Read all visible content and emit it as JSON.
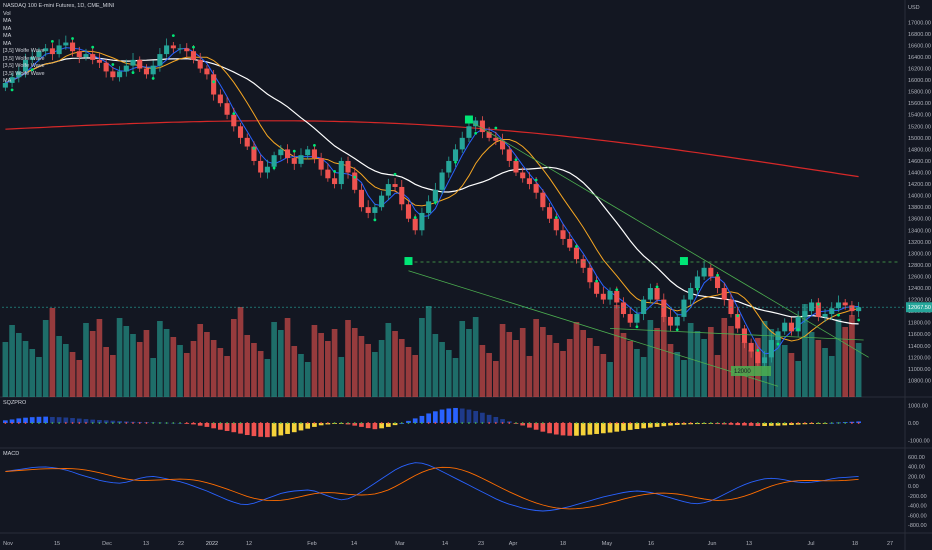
{
  "chart_data": {
    "type": "candlestick",
    "title": "NASDAQ 100 E-mini Futures, 1D, CME_MINI",
    "legend_items": [
      "Vol",
      "MA",
      "MA",
      "MA",
      "MA",
      "[3,5] Wolfe Wave",
      "[3,5] Wolfe Wave",
      "[3,5] Wolfe Wave",
      "[3,5] Wolfe Wave",
      "MA"
    ],
    "x_tick_labels": [
      "Nov",
      "15",
      "Dec",
      "13",
      "22",
      "2022",
      "12",
      "Feb",
      "14",
      "Mar",
      "14",
      "23",
      "Apr",
      "18",
      "May",
      "16",
      "Jun",
      "13",
      "Jul",
      "18",
      "27"
    ],
    "y_tick_labels": [
      "USD",
      "17200.00",
      "17000.00",
      "16800.00",
      "16600.00",
      "16400.00",
      "16200.00",
      "16000.00",
      "15800.00",
      "15600.00",
      "15400.00",
      "15200.00",
      "15000.00",
      "14800.00",
      "14600.00",
      "14400.00",
      "14200.00",
      "14000.00",
      "13800.00",
      "13600.00",
      "13400.00",
      "13200.00",
      "13000.00",
      "12800.00",
      "12600.00",
      "12400.00",
      "12200.00",
      "12000.00",
      "11800.00",
      "11600.00",
      "11400.00",
      "11200.00",
      "11000.00",
      "10800.00"
    ],
    "ylim": [
      10600,
      17300
    ],
    "last_price_label": "12067.50",
    "last_price": 12067.5,
    "series": [
      {
        "name": "Close",
        "values": [
          15950,
          16050,
          16150,
          16350,
          16400,
          16500,
          16550,
          16450,
          16600,
          16650,
          16500,
          16400,
          16450,
          16350,
          16300,
          16150,
          16050,
          16150,
          16250,
          16350,
          16200,
          16100,
          16250,
          16450,
          16600,
          16550,
          16550,
          16500,
          16350,
          16200,
          16100,
          15750,
          15600,
          15400,
          15200,
          15000,
          14850,
          14600,
          14400,
          14500,
          14700,
          14800,
          14650,
          14550,
          14700,
          14800,
          14650,
          14450,
          14300,
          14200,
          14600,
          14400,
          14100,
          13800,
          13700,
          13800,
          14000,
          14200,
          14150,
          13850,
          13600,
          13400,
          13700,
          13900,
          14100,
          14400,
          14600,
          14800,
          15000,
          15200,
          15300,
          15100,
          15000,
          14950,
          14800,
          14600,
          14400,
          14300,
          14200,
          14050,
          13800,
          13600,
          13400,
          13250,
          13100,
          12900,
          12750,
          12500,
          12300,
          12200,
          12350,
          12150,
          11950,
          11800,
          11950,
          12200,
          12400,
          12200,
          11900,
          11750,
          11900,
          12200,
          12400,
          12600,
          12750,
          12600,
          12400,
          12200,
          11950,
          11700,
          11450,
          11300,
          11100,
          11200,
          11500,
          11650,
          11800,
          11650,
          11900,
          12000,
          12150,
          11900,
          11950,
          12050,
          12150,
          12100,
          12000,
          12067.5
        ]
      },
      {
        "name": "SQZPRO",
        "values": [
          150,
          200,
          260,
          300,
          330,
          350,
          360,
          340,
          330,
          310,
          280,
          250,
          220,
          190,
          170,
          150,
          130,
          110,
          90,
          70,
          60,
          50,
          40,
          30,
          20,
          10,
          0,
          -30,
          -80,
          -150,
          -220,
          -300,
          -380,
          -450,
          -520,
          -600,
          -680,
          -740,
          -780,
          -800,
          -760,
          -700,
          -620,
          -520,
          -420,
          -320,
          -220,
          -130,
          -80,
          -50,
          -30,
          -80,
          -150,
          -220,
          -290,
          -350,
          -300,
          -220,
          -120,
          0,
          120,
          260,
          400,
          540,
          660,
          760,
          820,
          850,
          820,
          760,
          680,
          580,
          460,
          340,
          220,
          100,
          -20,
          -140,
          -260,
          -380,
          -490,
          -580,
          -650,
          -700,
          -720,
          -720,
          -700,
          -660,
          -620,
          -580,
          -540,
          -490,
          -440,
          -390,
          -340,
          -300,
          -260,
          -220,
          -180,
          -140,
          -110,
          -90,
          -70,
          -60,
          -50,
          -40,
          -60,
          -80,
          -100,
          -120,
          -140,
          -160,
          -170,
          -170,
          -160,
          -150,
          -130,
          -110,
          -90,
          -70,
          -50,
          -30,
          -10,
          10,
          30,
          50,
          70,
          90
        ]
      },
      {
        "name": "MACD",
        "values": [
          300,
          320,
          340,
          360,
          380,
          390,
          395,
          380,
          360,
          330,
          290,
          240,
          200,
          160,
          120,
          90,
          70,
          60,
          80,
          120,
          160,
          190,
          200,
          180,
          150,
          120,
          90,
          50,
          0,
          -50,
          -100,
          -160,
          -220,
          -280,
          -330,
          -370,
          -380,
          -350,
          -300,
          -250,
          -200,
          -150,
          -120,
          -100,
          -90,
          -80,
          -100,
          -150,
          -200,
          -250,
          -280,
          -260,
          -200,
          -120,
          -30,
          60,
          150,
          240,
          330,
          400,
          450,
          480,
          470,
          430,
          370,
          300,
          230,
          160,
          90,
          20,
          -50,
          -120,
          -190,
          -260,
          -320,
          -370,
          -410,
          -450,
          -480,
          -500,
          -510,
          -500,
          -480,
          -450,
          -420,
          -380,
          -340,
          -300,
          -260,
          -220,
          -190,
          -160,
          -130,
          -110,
          -100,
          -110,
          -130,
          -160,
          -200,
          -240,
          -280,
          -320,
          -350,
          -360,
          -340,
          -300,
          -240,
          -170,
          -100,
          -30,
          30,
          80,
          120,
          150,
          160,
          150,
          130,
          100,
          80,
          70,
          80,
          100,
          120,
          150,
          170,
          180,
          190,
          200
        ]
      }
    ],
    "sqz_tick_labels": [
      "1000.00",
      "0.00",
      "-1000.00"
    ],
    "sqz_ylim": [
      -1300,
      1300
    ],
    "macd_tick_labels": [
      "600.00",
      "400.00",
      "200.00",
      "0.00",
      "-200.00",
      "-400.00",
      "-600.00",
      "-800.00"
    ],
    "macd_ylim": [
      -900,
      700
    ],
    "wolfe_target_label": "12000",
    "pane_labels": {
      "sqz": "SQZPRO",
      "macd": "MACD"
    }
  },
  "colors": {
    "background": "#131722",
    "up": "#26a69a",
    "down": "#ef5350",
    "ma_red": "#d62828",
    "ma_white": "#ffffff",
    "ma_orange": "#f5a623",
    "ma_blue": "#2962ff",
    "wolfe": "#4caf50",
    "dots": "#00e676",
    "macd_line": "#2962ff",
    "signal_line": "#ff6d00"
  }
}
